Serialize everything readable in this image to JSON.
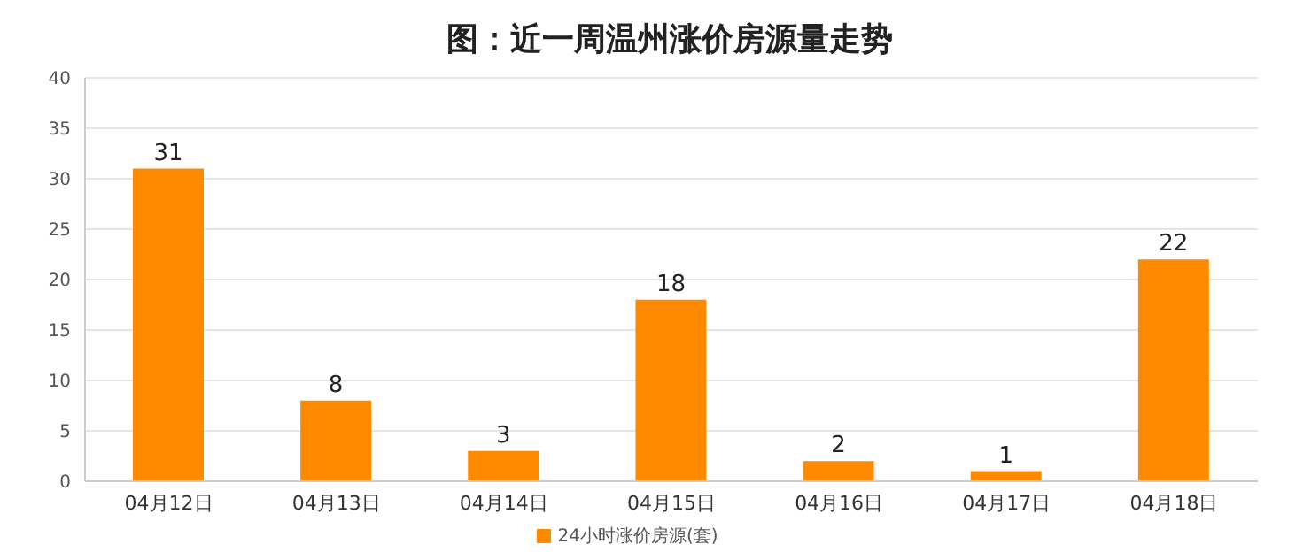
{
  "chart_data": {
    "type": "bar",
    "title": "图：近一周温州涨价房源量走势",
    "categories": [
      "04月12日",
      "04月13日",
      "04月14日",
      "04月15日",
      "04月16日",
      "04月17日",
      "04月18日"
    ],
    "series": [
      {
        "name": "24小时涨价房源(套)",
        "color": "#ff8a00",
        "values": [
          31,
          8,
          3,
          18,
          2,
          1,
          22
        ]
      }
    ],
    "ylim": [
      0,
      40
    ],
    "yticks": [
      0,
      5,
      10,
      15,
      20,
      25,
      30,
      35,
      40
    ],
    "grid": "y",
    "legend": "bottom",
    "data_labels": true
  }
}
